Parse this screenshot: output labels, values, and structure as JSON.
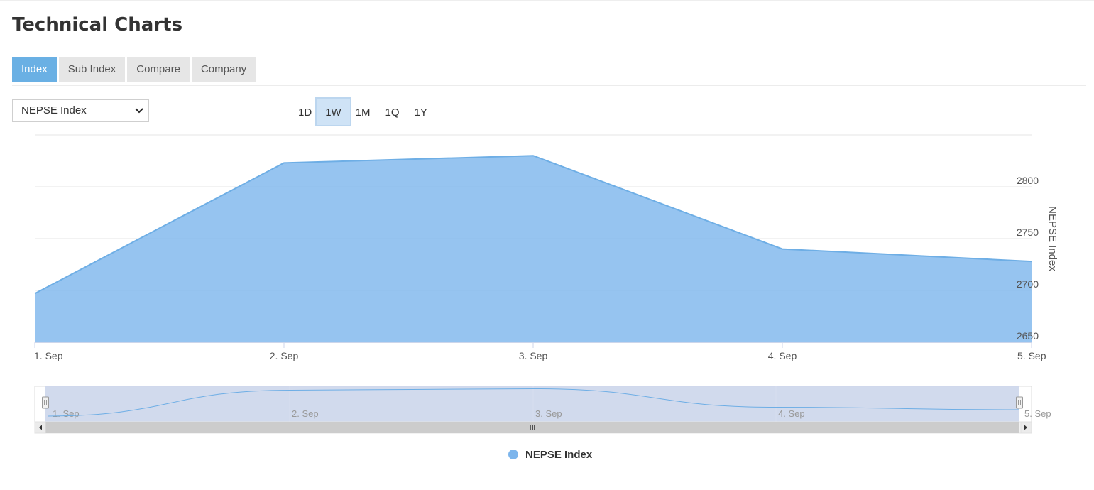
{
  "header": {
    "title": "Technical Charts"
  },
  "tabs": [
    {
      "label": "Index",
      "active": true
    },
    {
      "label": "Sub Index",
      "active": false
    },
    {
      "label": "Compare",
      "active": false
    },
    {
      "label": "Company",
      "active": false
    }
  ],
  "index_select": {
    "selected": "NEPSE Index"
  },
  "range_buttons": [
    {
      "label": "1D",
      "active": false
    },
    {
      "label": "1W",
      "active": true
    },
    {
      "label": "1M",
      "active": false
    },
    {
      "label": "1Q",
      "active": false
    },
    {
      "label": "1Y",
      "active": false
    }
  ],
  "chart_data": {
    "type": "area",
    "categories": [
      "1. Sep",
      "2. Sep",
      "3. Sep",
      "4. Sep",
      "5. Sep"
    ],
    "series": [
      {
        "name": "NEPSE Index",
        "values": [
          2697,
          2823,
          2830,
          2740,
          2728
        ]
      }
    ],
    "ylabel": "NEPSE Index",
    "yticks": [
      "2650",
      "2700",
      "2750",
      "2800"
    ],
    "ylim": [
      2650,
      2850
    ],
    "y_axis_side": "right",
    "grid": true,
    "legend_position": "bottom-center",
    "navigator": {
      "labels": [
        "1. Sep",
        "2. Sep",
        "3. Sep",
        "4. Sep",
        "5. Sep"
      ],
      "scrollbar_glyph": "III"
    },
    "colors": {
      "fill": "#7cb5ec",
      "line": "#6eaee5"
    }
  },
  "legend": {
    "items": [
      {
        "label": "NEPSE Index",
        "color": "#7cb5ec"
      }
    ]
  }
}
